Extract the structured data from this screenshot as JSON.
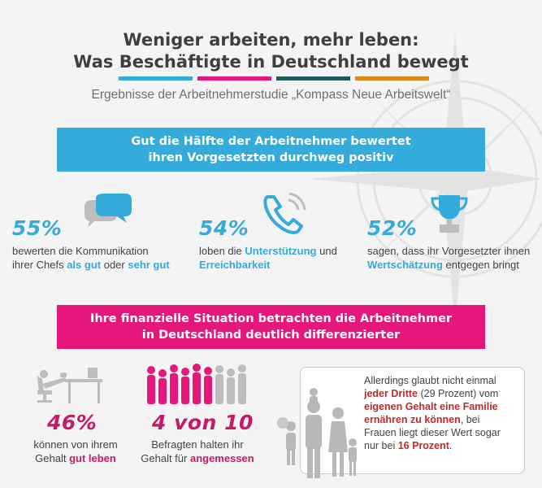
{
  "header": {
    "title_line1": "Weniger arbeiten, mehr leben:",
    "title_line2": "Was Beschäftigte in Deutschland bewegt",
    "subtitle": "Ergebnisse der Arbeitnehmerstudie „Kompass Neue Arbeitswelt“",
    "bar_colors": [
      "#35abdc",
      "#e5177b",
      "#1d5a5a",
      "#e8861e"
    ]
  },
  "section1": {
    "banner_line1": "Gut die Hälfte der Arbeitnehmer bewertet",
    "banner_line2": "ihren Vorgesetzten durchweg positiv",
    "stat1": {
      "value": "55%",
      "icon": "speech-bubbles-icon",
      "line1": "bewerten die Kommunikation",
      "line2_pre": "ihrer Chefs ",
      "line2_b1": "als gut",
      "line2_mid": " oder ",
      "line2_b2": "sehr gut"
    },
    "stat2": {
      "value": "54%",
      "icon": "phone-icon",
      "line1_pre": "loben die ",
      "line1_b": "Unterstützung",
      "line1_post": " und",
      "line2_b": "Erreichbarkeit"
    },
    "stat3": {
      "value": "52%",
      "icon": "trophy-icon",
      "line1": "sagen, dass ihr Vorgesetzter ihnen",
      "line2_b": "Wertschätzung",
      "line2_post": " entgegen bringt"
    }
  },
  "section2": {
    "banner_line1": "Ihre finanzielle Situation betrachten die Arbeitnehmer",
    "banner_line2": "in Deutschland deutlich differenzierter",
    "stat1": {
      "value": "46%",
      "icon": "relaxing-desk-icon",
      "line1": "können von ihrem",
      "line2_pre": "Gehalt ",
      "line2_b": "gut leben"
    },
    "stat2": {
      "value": "4 von 10",
      "icon": "crowd-icon",
      "line1": "Befragten halten ihr",
      "line2_pre": "Gehalt für ",
      "line2_b": "angemessen"
    },
    "card": {
      "icon": "family-icon",
      "l1": "Allerdings glaubt nicht einmal",
      "l2_b": "jeder Dritte",
      "l2_post": " (29 Prozent) vom",
      "l3_b": "eigenen Gehalt eine Familie",
      "l4_b": "ernähren zu können",
      "l4_post": ", bei",
      "l5": "Frauen liegt dieser Wert sogar",
      "l6_pre": "nur bei ",
      "l6_b": "16 Prozent",
      "l6_post": "."
    }
  }
}
